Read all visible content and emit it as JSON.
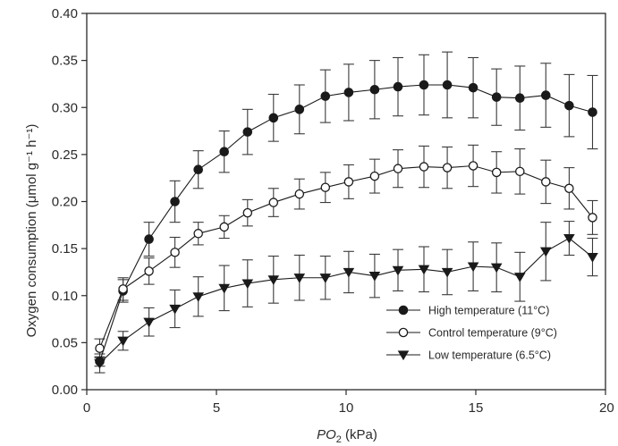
{
  "chart_data": {
    "type": "line",
    "xlabel_main": "PO",
    "xlabel_sub": "2",
    "xlabel_unit": " (kPa)",
    "ylabel": "Oxygen consumption (μmol g⁻¹ h⁻¹)",
    "xlim": [
      0,
      20
    ],
    "ylim": [
      0,
      0.4
    ],
    "xticks": [
      0,
      5,
      10,
      15,
      20
    ],
    "xtick_labels": [
      "0",
      "5",
      "10",
      "15",
      "20"
    ],
    "yticks": [
      0.0,
      0.05,
      0.1,
      0.15,
      0.2,
      0.25,
      0.3,
      0.35,
      0.4
    ],
    "ytick_labels": [
      "0.00",
      "0.05",
      "0.10",
      "0.15",
      "0.20",
      "0.25",
      "0.30",
      "0.35",
      "0.40"
    ],
    "legend_position": "bottom-right",
    "grid": false,
    "series": [
      {
        "name": "High temperature (11°C)",
        "marker": "circle-filled",
        "color": "#1a1a1a",
        "x": [
          0.5,
          1.4,
          2.4,
          3.4,
          4.3,
          5.3,
          6.2,
          7.2,
          8.2,
          9.2,
          10.1,
          11.1,
          12.0,
          13.0,
          13.9,
          14.9,
          15.8,
          16.7,
          17.7,
          18.6,
          19.5
        ],
        "y": [
          0.03,
          0.105,
          0.16,
          0.2,
          0.234,
          0.253,
          0.274,
          0.289,
          0.298,
          0.312,
          0.316,
          0.319,
          0.322,
          0.324,
          0.324,
          0.321,
          0.311,
          0.31,
          0.313,
          0.302,
          0.295
        ],
        "err": [
          0.005,
          0.012,
          0.018,
          0.022,
          0.02,
          0.022,
          0.024,
          0.025,
          0.026,
          0.028,
          0.03,
          0.031,
          0.031,
          0.032,
          0.035,
          0.032,
          0.03,
          0.034,
          0.034,
          0.033,
          0.039
        ]
      },
      {
        "name": "Control temperature (9°C)",
        "marker": "circle-open",
        "color": "#1a1a1a",
        "x": [
          0.5,
          1.4,
          2.4,
          3.4,
          4.3,
          5.3,
          6.2,
          7.2,
          8.2,
          9.2,
          10.1,
          11.1,
          12.0,
          13.0,
          13.9,
          14.9,
          15.8,
          16.7,
          17.7,
          18.6,
          19.5
        ],
        "y": [
          0.044,
          0.107,
          0.126,
          0.146,
          0.166,
          0.173,
          0.188,
          0.199,
          0.208,
          0.215,
          0.221,
          0.227,
          0.235,
          0.237,
          0.236,
          0.238,
          0.231,
          0.232,
          0.221,
          0.214,
          0.183
        ],
        "err": [
          0.01,
          0.012,
          0.014,
          0.016,
          0.012,
          0.012,
          0.014,
          0.015,
          0.016,
          0.016,
          0.018,
          0.018,
          0.02,
          0.022,
          0.022,
          0.022,
          0.022,
          0.024,
          0.023,
          0.022,
          0.018
        ]
      },
      {
        "name": "Low temperature (6.5°C)",
        "marker": "triangle-down",
        "color": "#1a1a1a",
        "x": [
          0.5,
          1.4,
          2.4,
          3.4,
          4.3,
          5.3,
          6.2,
          7.2,
          8.2,
          9.2,
          10.1,
          11.1,
          12.0,
          13.0,
          13.9,
          14.9,
          15.8,
          16.7,
          17.7,
          18.6,
          19.5
        ],
        "y": [
          0.028,
          0.052,
          0.072,
          0.086,
          0.099,
          0.108,
          0.113,
          0.117,
          0.119,
          0.119,
          0.125,
          0.121,
          0.127,
          0.128,
          0.125,
          0.131,
          0.13,
          0.12,
          0.147,
          0.161,
          0.141
        ],
        "err": [
          0.01,
          0.01,
          0.015,
          0.02,
          0.021,
          0.024,
          0.025,
          0.025,
          0.024,
          0.023,
          0.022,
          0.023,
          0.022,
          0.024,
          0.024,
          0.026,
          0.026,
          0.026,
          0.031,
          0.018,
          0.02
        ]
      }
    ]
  }
}
